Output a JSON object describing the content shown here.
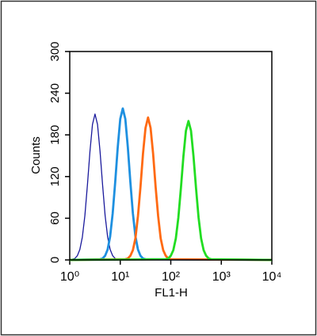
{
  "chart_data": {
    "type": "line",
    "ylabel": "Counts",
    "xlabel": "FL1-H",
    "xscale": "log",
    "xlim": [
      1,
      10000
    ],
    "xticks": [
      {
        "value": 1,
        "label": "10⁰"
      },
      {
        "value": 10,
        "label": "10¹"
      },
      {
        "value": 100,
        "label": "10²"
      },
      {
        "value": 1000,
        "label": "10³"
      },
      {
        "value": 10000,
        "label": "10⁴"
      }
    ],
    "ylim": [
      0,
      300
    ],
    "yticks": [
      0,
      60,
      120,
      180,
      240,
      300
    ],
    "series": [
      {
        "color": "#1a1a9c",
        "x": [
          1,
          1.122,
          1.259,
          1.413,
          1.585,
          1.778,
          1.995,
          2.239,
          2.512,
          2.818,
          3.162,
          3.548,
          3.981,
          4.467,
          5.012,
          5.623,
          6.31,
          7.079,
          7.943,
          8.913,
          10000
        ],
        "values": [
          0,
          1,
          2,
          6,
          15,
          33,
          64,
          108,
          156,
          195,
          210,
          195,
          156,
          108,
          64,
          33,
          15,
          6,
          2,
          1,
          0
        ]
      },
      {
        "color": "#1e90e0",
        "x": [
          1,
          3.981,
          4.467,
          5.012,
          5.623,
          6.31,
          7.079,
          7.943,
          8.913,
          10,
          11.22,
          12.59,
          14.13,
          15.85,
          17.78,
          19.95,
          22.39,
          25.12,
          28.18,
          31.62,
          10000
        ],
        "values": [
          0,
          1,
          2,
          6,
          15,
          34,
          67,
          112,
          162,
          203,
          218,
          203,
          162,
          112,
          67,
          34,
          15,
          6,
          2,
          1,
          0
        ]
      },
      {
        "color": "#ff6a13",
        "x": [
          1,
          12.59,
          14.13,
          15.85,
          17.78,
          19.95,
          22.39,
          25.12,
          28.18,
          31.62,
          35.48,
          39.81,
          44.67,
          50.12,
          56.23,
          63.1,
          70.79,
          79.43,
          89.13,
          100,
          10000
        ],
        "values": [
          0,
          1,
          2,
          6,
          14,
          31,
          63,
          105,
          153,
          190,
          205,
          190,
          153,
          105,
          63,
          31,
          14,
          6,
          2,
          1,
          0
        ]
      },
      {
        "color": "#22dd22",
        "x": [
          1,
          79.43,
          89.13,
          100,
          112.2,
          125.9,
          141.3,
          158.5,
          177.8,
          199.5,
          223.9,
          251.2,
          281.8,
          316.2,
          354.8,
          398.1,
          446.7,
          501.2,
          562.3,
          631,
          10000
        ],
        "values": [
          0,
          1,
          2,
          6,
          14,
          31,
          61,
          103,
          149,
          186,
          200,
          186,
          149,
          103,
          61,
          31,
          14,
          6,
          2,
          1,
          0
        ]
      }
    ]
  }
}
